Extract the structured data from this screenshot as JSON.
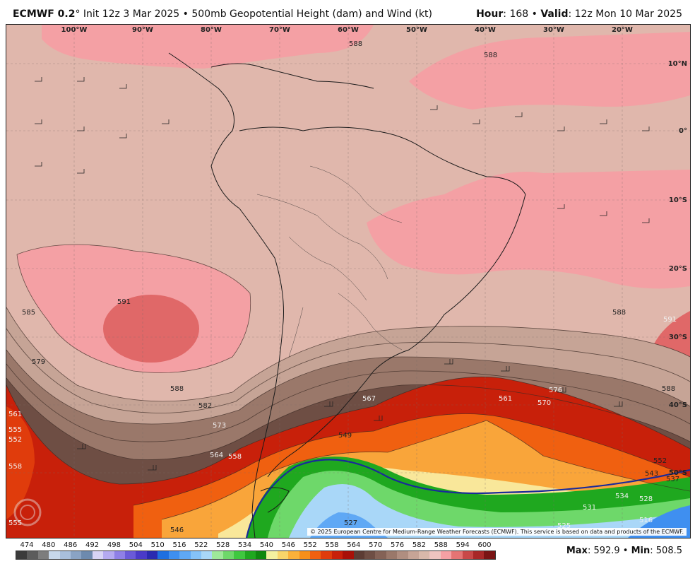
{
  "header": {
    "model": "ECMWF 0.2",
    "init": "° Init 12z 3 Mar 2025 • 500mb Geopotential Height (dam) and Wind (kt)",
    "hour_label": "Hour",
    "hour_value": ": 168 • ",
    "valid_label": "Valid",
    "valid_value": ": 12z Mon 10 Mar 2025"
  },
  "map": {
    "lon_labels": [
      "100°W",
      "90°W",
      "80°W",
      "70°W",
      "60°W",
      "50°W",
      "40°W",
      "30°W",
      "20°W"
    ],
    "lat_labels": [
      "10°N",
      "0°",
      "10°S",
      "20°S",
      "30°S",
      "40°S",
      "50°S"
    ],
    "contour_labels": [
      "588",
      "588",
      "585",
      "591",
      "579",
      "588",
      "582",
      "573",
      "567",
      "564",
      "561",
      "570",
      "576",
      "588",
      "591",
      "588",
      "561",
      "555",
      "552",
      "558",
      "558",
      "549",
      "546",
      "555",
      "543",
      "531",
      "534",
      "528",
      "525",
      "516",
      "527",
      "552",
      "537"
    ],
    "copyright": "© 2025 European Centre for Medium-Range Weather Forecasts (ECMWF). This service is based on data and products of the ECMWF."
  },
  "colorbar": {
    "ticks": [
      "474",
      "480",
      "486",
      "492",
      "498",
      "504",
      "510",
      "516",
      "522",
      "528",
      "534",
      "540",
      "546",
      "552",
      "558",
      "564",
      "570",
      "576",
      "582",
      "588",
      "594",
      "600"
    ],
    "colors": [
      "#3b3b3b",
      "#5c5c5c",
      "#7d7d7d",
      "#c8d8ea",
      "#a9bfdc",
      "#8aa3c4",
      "#6d8aae",
      "#d8d4f5",
      "#b5aaf0",
      "#8f80e6",
      "#6a5ad8",
      "#4a3ac8",
      "#2a2ab0",
      "#1f6fe0",
      "#3f8ff0",
      "#5fa8f5",
      "#85c2f8",
      "#a9d7f8",
      "#9ee89a",
      "#6ed86a",
      "#3fc83f",
      "#1fa81f",
      "#0f880f",
      "#f4f1a0",
      "#f9d56a",
      "#fbb13a",
      "#f78f1a",
      "#f06010",
      "#e03c0c",
      "#c8200a",
      "#a81008",
      "#5c3c34",
      "#6e4e44",
      "#846256",
      "#9a786a",
      "#b08e80",
      "#c6a496",
      "#d8b8aa",
      "#eec4c0",
      "#f4a0a4",
      "#e47474",
      "#c84848",
      "#a82828",
      "#7a1414"
    ],
    "max_label": "Max",
    "max_value": ": 592.9 • ",
    "min_label": "Min",
    "min_value": ": 508.5"
  }
}
